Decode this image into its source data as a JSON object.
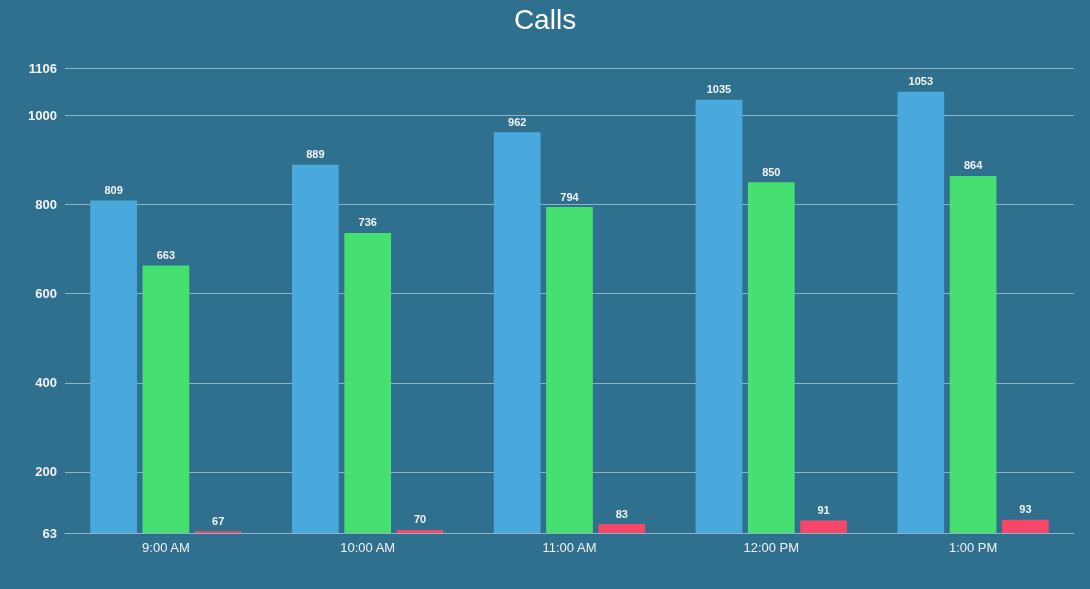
{
  "chart_data": {
    "type": "bar",
    "title": "Calls",
    "categories": [
      "9:00 AM",
      "10:00 AM",
      "11:00 AM",
      "12:00 PM",
      "1:00 PM"
    ],
    "series": [
      {
        "color": "#4aa9dc",
        "values": [
          809,
          889,
          962,
          1035,
          1053
        ]
      },
      {
        "color": "#46e071",
        "values": [
          663,
          736,
          794,
          850,
          864
        ]
      },
      {
        "color": "#f6466a",
        "values": [
          67,
          70,
          83,
          91,
          93
        ]
      }
    ],
    "ylim": [
      63,
      1106
    ],
    "yticks": [
      63,
      200,
      400,
      600,
      800,
      1000,
      1106
    ],
    "grid": "y",
    "data_labels": true
  }
}
